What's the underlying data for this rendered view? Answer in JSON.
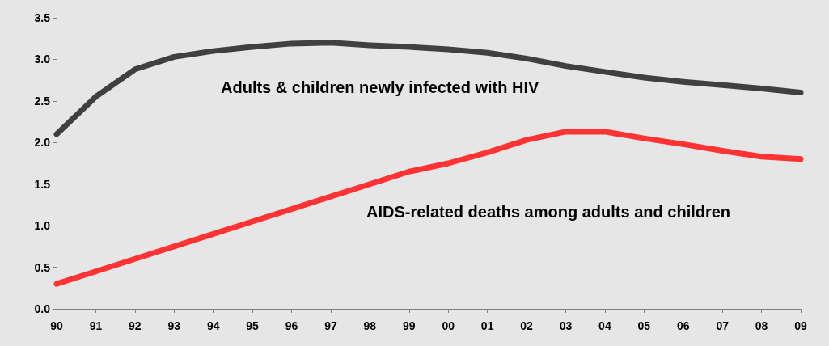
{
  "chart_data": {
    "type": "line",
    "categories": [
      "90",
      "91",
      "92",
      "93",
      "94",
      "95",
      "96",
      "97",
      "98",
      "99",
      "00",
      "01",
      "02",
      "03",
      "04",
      "05",
      "06",
      "07",
      "08",
      "09"
    ],
    "series": [
      {
        "color": "#404040",
        "values": [
          2.1,
          2.55,
          2.88,
          3.03,
          3.1,
          3.15,
          3.19,
          3.2,
          3.17,
          3.15,
          3.12,
          3.08,
          3.01,
          2.92,
          2.85,
          2.78,
          2.73,
          2.69,
          2.65,
          2.6
        ]
      },
      {
        "color": "#ff3333",
        "values": [
          0.3,
          0.45,
          0.6,
          0.75,
          0.9,
          1.05,
          1.2,
          1.35,
          1.5,
          1.65,
          1.75,
          1.88,
          2.03,
          2.13,
          2.13,
          2.05,
          1.98,
          1.9,
          1.83,
          1.8
        ]
      }
    ],
    "ylim": [
      0,
      3.5
    ],
    "yticks": [
      {
        "value": 0,
        "label": "0.0"
      },
      0.5,
      {
        "value": 1,
        "label": "1.0"
      },
      1.5,
      {
        "value": 2,
        "label": "2.0"
      },
      2.5,
      {
        "value": 3,
        "label": "3.0"
      },
      3.5
    ],
    "grid": false,
    "marker": "none",
    "line_style": "solid",
    "annotations": [
      "Adults & children newly infected with HIV",
      "AIDS-related deaths among adults and children"
    ]
  }
}
